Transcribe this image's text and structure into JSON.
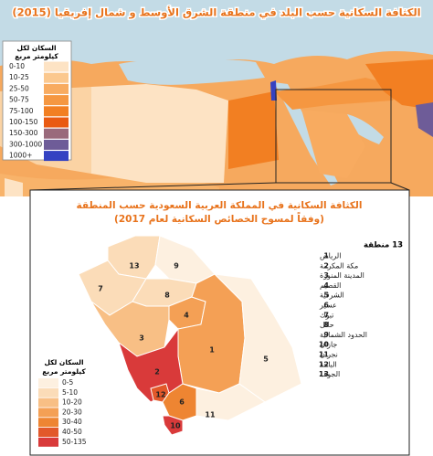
{
  "header": {
    "title": "الكثافة السكانية  حسب البلد في منطقة الشرق الأوسط و شمال إفريقيا (2015)"
  },
  "main_legend": {
    "title": [
      "السكان لكل",
      "كيلومتر مربع"
    ],
    "items": [
      {
        "label": "0-10",
        "color": "#fde3c4"
      },
      {
        "label": "10-25",
        "color": "#fbc88e"
      },
      {
        "label": "25-50",
        "color": "#f8ab60"
      },
      {
        "label": "50-75",
        "color": "#f59741"
      },
      {
        "label": "75-100",
        "color": "#f27f22"
      },
      {
        "label": "100-150",
        "color": "#e95a12"
      },
      {
        "label": "150-300",
        "color": "#9a6a7c"
      },
      {
        "label": "300-1000",
        "color": "#6e5c98"
      },
      {
        "label": "1000+",
        "color": "#3442c2"
      }
    ]
  },
  "inset": {
    "title": [
      "الكثافة السكانية في المملكة العربية السعودية حسب المنطقة",
      "(وفقاً لمسوح الخصائص السكانية لعام 2017)"
    ],
    "regions_header": "13 منطقة",
    "regions": [
      {
        "number": "1",
        "name": "الرياض"
      },
      {
        "number": "2",
        "name": "مكة المكرمة"
      },
      {
        "number": "3",
        "name": "المدينة المنورة"
      },
      {
        "number": "4",
        "name": "القصيم"
      },
      {
        "number": "5",
        "name": "الشرقية"
      },
      {
        "number": "6",
        "name": "عسير"
      },
      {
        "number": "7",
        "name": "تبوك"
      },
      {
        "number": "8",
        "name": "حائل"
      },
      {
        "number": "9",
        "name": "الحدود الشمالية"
      },
      {
        "number": "10",
        "name": "جازان"
      },
      {
        "number": "11",
        "name": "نجران"
      },
      {
        "number": "12",
        "name": "الباحة"
      },
      {
        "number": "13",
        "name": "الجوف"
      }
    ],
    "legend": {
      "title": [
        "السكان لكل",
        "كيلومتر مربع"
      ],
      "items": [
        {
          "label": "0-5",
          "color": "#fdf0e0"
        },
        {
          "label": "5-10",
          "color": "#fbdcb8"
        },
        {
          "label": "10-20",
          "color": "#f8bf85"
        },
        {
          "label": "20-30",
          "color": "#f4a055"
        },
        {
          "label": "30-40",
          "color": "#ee8532"
        },
        {
          "label": "40-50",
          "color": "#e2582a"
        },
        {
          "label": "50-135",
          "color": "#d93a3a"
        }
      ]
    }
  }
}
